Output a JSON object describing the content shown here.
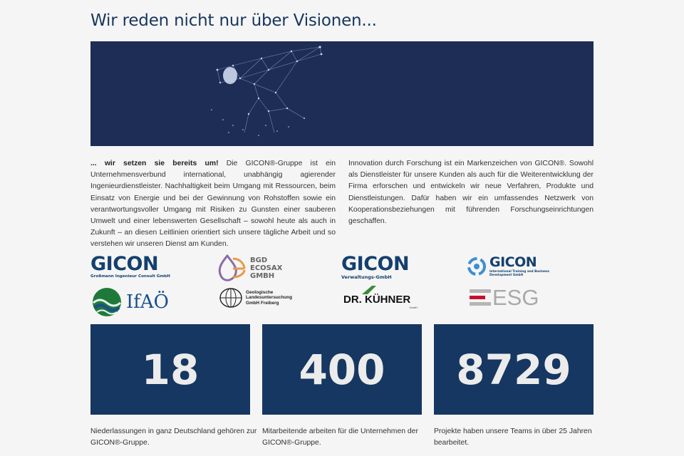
{
  "page": {
    "title": "Wir reden nicht nur über Visionen..."
  },
  "intro": {
    "left_lead": "... wir setzen sie bereits um!",
    "left_body": " Die GICON®-Gruppe ist ein Unternehmensverbund international, unabhängig agierender Ingenieurdienstleister. Nachhaltigkeit beim Umgang mit Ressourcen, beim Einsatz von Energie und bei der Gewinnung von Rohstoffen sowie ein verantwortungsvoller Umgang mit Risiken zu Gunsten einer sauberen Umwelt und einer lebenswerten Gesellschaft – sowohl heute als auch in Zukunft – an diesen Leitlinien orientiert sich unsere tägliche Arbeit und so verstehen wir unseren Dienst am Kunden.",
    "right_body": "Innovation durch Forschung ist ein Markenzeichen von GICON®. Sowohl als Dienstleister für unsere Kunden als auch für die Weiterentwicklung der Firma erforschen und entwickeln wir neue Verfahren, Produkte und Dienstleistungen. Dafür haben wir ein umfassendes Netzwerk von Kooperationsbeziehungen mit führenden Forschungseinrichtungen geschaffen."
  },
  "logos": {
    "gicon_main": {
      "word": "GICON",
      "sub": "Großmann Ingenieur Consult GmbH"
    },
    "bgd": {
      "line1": "BGD",
      "line2": "ECOSAX",
      "line3": "GMBH"
    },
    "gicon_verw": {
      "word": "GICON",
      "sub": "Verwaltungs-GmbH"
    },
    "gicon_intl": {
      "word": "GICON",
      "sub1": "International Training and Business",
      "sub2": "Development GmbH"
    },
    "ifao": {
      "word": "IfAÖ"
    },
    "glu": {
      "line1": "Geologische",
      "line2": "Landesuntersuchung",
      "line3": "GmbH Freiberg"
    },
    "kuhner": {
      "word": "DR. KÜHNER",
      "sub": "GmbH"
    },
    "esg": {
      "word": "ESG"
    }
  },
  "stats": [
    {
      "number": "18",
      "text": "Niederlassungen in ganz Deutschland gehören zur GICON®-Gruppe."
    },
    {
      "number": "400",
      "text": "Mitarbeitende arbeiten für die Unternehmen der GICON®-Gruppe."
    },
    {
      "number": "8729",
      "text": "Projekte haben unsere Teams in über 25 Jahren bearbeitet."
    }
  ],
  "colors": {
    "accent_navy": "#163761",
    "hero_bg": "#1d2d56",
    "title": "#17365d"
  }
}
